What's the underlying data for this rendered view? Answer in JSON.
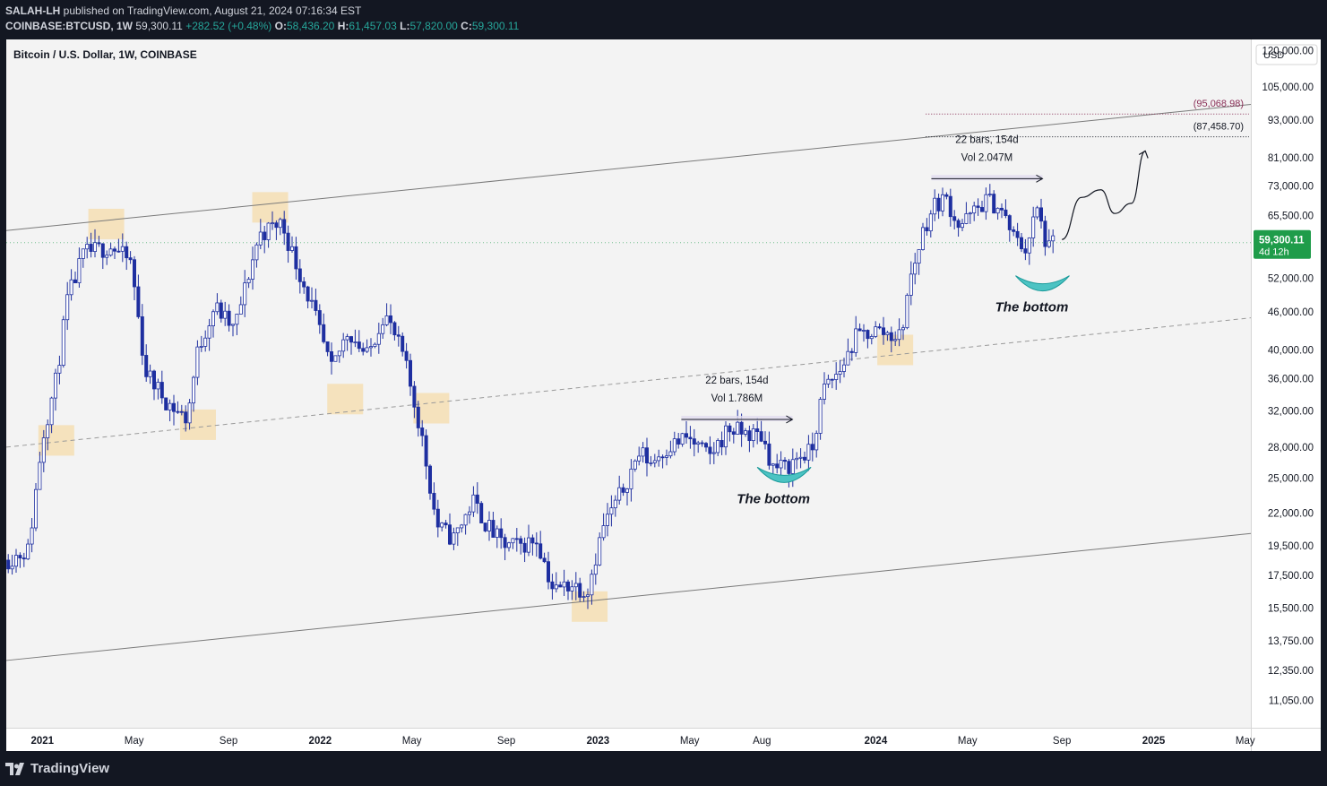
{
  "header": {
    "publisher": "SALAH-LH",
    "published_text": "published on TradingView.com, August 21, 2024 07:16:34 EST",
    "symbol": "COINBASE:BTCUSD, 1W",
    "price": "59,300.11",
    "change": "+282.52 (+0.48%)",
    "o_label": "O:",
    "o": "58,436.20",
    "h_label": "H:",
    "h": "61,457.03",
    "l_label": "L:",
    "l": "57,820.00",
    "c_label": "C:",
    "c": "59,300.11"
  },
  "footer": {
    "brand": "TradingView"
  },
  "colors": {
    "up": "#ffffff",
    "down": "#1e2fa0",
    "wick": "#1e2fa0",
    "accent_green": "#26a69a",
    "highlight": "#f5deb3",
    "cup": "#4cc3c3",
    "price_label_bg": "#1f9c4a",
    "target_1": "#8a2f57"
  },
  "chart_data": {
    "type": "candlestick",
    "title": "Bitcoin / U.S. Dollar, 1W, COINBASE",
    "currency": "USD",
    "scale": "log",
    "ylim": [
      10000,
      125000
    ],
    "y_ticks": [
      120000,
      105000,
      93000,
      81000,
      73000,
      65500,
      52000,
      46000,
      40000,
      36000,
      32000,
      28000,
      25000,
      22000,
      19500,
      17500,
      15500,
      13750,
      12350,
      11050
    ],
    "y_tick_labels": [
      "120,000.00",
      "105,000.00",
      "93,000.00",
      "81,000.00",
      "73,000.00",
      "65,500.00",
      "52,000.00",
      "46,000.00",
      "40,000.00",
      "36,000.00",
      "32,000.00",
      "28,000.00",
      "25,000.00",
      "22,000.00",
      "19,500.00",
      "17,500.00",
      "15,500.00",
      "13,750.00",
      "12,350.00",
      "11,050.00"
    ],
    "x_ticks": [
      {
        "label": "2021",
        "t": 2021.0,
        "bold": true
      },
      {
        "label": "May",
        "t": 2021.33
      },
      {
        "label": "Sep",
        "t": 2021.67
      },
      {
        "label": "2022",
        "t": 2022.0,
        "bold": true
      },
      {
        "label": "May",
        "t": 2022.33
      },
      {
        "label": "Sep",
        "t": 2022.67
      },
      {
        "label": "2023",
        "t": 2023.0,
        "bold": true
      },
      {
        "label": "May",
        "t": 2023.33
      },
      {
        "label": "Aug",
        "t": 2023.59
      },
      {
        "label": "2024",
        "t": 2024.0,
        "bold": true
      },
      {
        "label": "May",
        "t": 2024.33
      },
      {
        "label": "Sep",
        "t": 2024.67
      },
      {
        "label": "2025",
        "t": 2025.0,
        "bold": true
      },
      {
        "label": "May",
        "t": 2025.33
      }
    ],
    "x_range": [
      2020.87,
      2025.35
    ],
    "last_price": {
      "value": 59300.11,
      "label": "59,300.11",
      "sub": "4d 12h"
    },
    "anchors": [
      [
        2020.87,
        18500
      ],
      [
        2020.95,
        19200
      ],
      [
        2021.0,
        29000
      ],
      [
        2021.05,
        36000
      ],
      [
        2021.09,
        48000
      ],
      [
        2021.15,
        57000
      ],
      [
        2021.25,
        58500
      ],
      [
        2021.32,
        55000
      ],
      [
        2021.37,
        37000
      ],
      [
        2021.45,
        33000
      ],
      [
        2021.52,
        31000
      ],
      [
        2021.56,
        40000
      ],
      [
        2021.62,
        47000
      ],
      [
        2021.69,
        43000
      ],
      [
        2021.78,
        61000
      ],
      [
        2021.86,
        64000
      ],
      [
        2021.9,
        57000
      ],
      [
        2021.97,
        47000
      ],
      [
        2022.04,
        37000
      ],
      [
        2022.1,
        43000
      ],
      [
        2022.17,
        39000
      ],
      [
        2022.23,
        46000
      ],
      [
        2022.3,
        39000
      ],
      [
        2022.36,
        30000
      ],
      [
        2022.42,
        21000
      ],
      [
        2022.48,
        20000
      ],
      [
        2022.55,
        23000
      ],
      [
        2022.6,
        21000
      ],
      [
        2022.66,
        19500
      ],
      [
        2022.72,
        19500
      ],
      [
        2022.78,
        20000
      ],
      [
        2022.84,
        16500
      ],
      [
        2022.9,
        17000
      ],
      [
        2022.96,
        16500
      ],
      [
        2023.02,
        21000
      ],
      [
        2023.08,
        23500
      ],
      [
        2023.15,
        27500
      ],
      [
        2023.19,
        26500
      ],
      [
        2023.25,
        28000
      ],
      [
        2023.32,
        29000
      ],
      [
        2023.4,
        27000
      ],
      [
        2023.47,
        30000
      ],
      [
        2023.52,
        29500
      ],
      [
        2023.59,
        29200
      ],
      [
        2023.63,
        26000
      ],
      [
        2023.68,
        26000
      ],
      [
        2023.72,
        27000
      ],
      [
        2023.77,
        27500
      ],
      [
        2023.81,
        34500
      ],
      [
        2023.87,
        37000
      ],
      [
        2023.93,
        42000
      ],
      [
        2024.0,
        43000
      ],
      [
        2024.04,
        42500
      ],
      [
        2024.09,
        42000
      ],
      [
        2024.12,
        51000
      ],
      [
        2024.17,
        62000
      ],
      [
        2024.21,
        68000
      ],
      [
        2024.25,
        70000
      ],
      [
        2024.3,
        63000
      ],
      [
        2024.35,
        66000
      ],
      [
        2024.4,
        69500
      ],
      [
        2024.45,
        67000
      ],
      [
        2024.5,
        60000
      ],
      [
        2024.54,
        58000
      ],
      [
        2024.58,
        67000
      ],
      [
        2024.62,
        57500
      ],
      [
        2024.64,
        59300
      ]
    ],
    "channel_upper": [
      {
        "t": 2020.87,
        "v": 62000
      },
      {
        "t": 2025.35,
        "v": 98500
      }
    ],
    "channel_lower": [
      {
        "t": 2020.87,
        "v": 12800
      },
      {
        "t": 2025.35,
        "v": 20400
      }
    ],
    "channel_mid": [
      {
        "t": 2020.87,
        "v": 28000
      },
      {
        "t": 2025.35,
        "v": 45000
      }
    ],
    "support_zones": [
      {
        "t": 2021.05,
        "v": 28700
      },
      {
        "t": 2021.23,
        "v": 63500
      },
      {
        "t": 2021.56,
        "v": 30400
      },
      {
        "t": 2021.82,
        "v": 67500
      },
      {
        "t": 2022.09,
        "v": 33400
      },
      {
        "t": 2022.4,
        "v": 32300
      },
      {
        "t": 2022.97,
        "v": 15600
      },
      {
        "t": 2024.07,
        "v": 40000
      }
    ],
    "annotations": [
      {
        "kind": "range",
        "t0": 2023.3,
        "t1": 2023.7,
        "v": 31000,
        "line1": "22 bars, 154d",
        "line2": "Vol 1.786M"
      },
      {
        "kind": "range",
        "t0": 2024.2,
        "t1": 2024.6,
        "v": 75000,
        "line1": "22 bars, 154d",
        "line2": "Vol 2.047M"
      },
      {
        "kind": "cup",
        "t": 2023.67,
        "v": 25500,
        "label": "The bottom"
      },
      {
        "kind": "cup",
        "t": 2024.6,
        "v": 51500,
        "label": "The bottom"
      },
      {
        "kind": "target",
        "v": 95068.98,
        "label": "(95,068.98)",
        "t0": 2024.18
      },
      {
        "kind": "target",
        "v": 87458.7,
        "label": "(87,458.70)",
        "t0": 2024.18
      }
    ],
    "projection": [
      {
        "t": 2024.67,
        "v": 60000
      },
      {
        "t": 2024.74,
        "v": 70000
      },
      {
        "t": 2024.81,
        "v": 72000
      },
      {
        "t": 2024.86,
        "v": 66000
      },
      {
        "t": 2024.92,
        "v": 68500
      },
      {
        "t": 2024.97,
        "v": 83000
      }
    ]
  }
}
